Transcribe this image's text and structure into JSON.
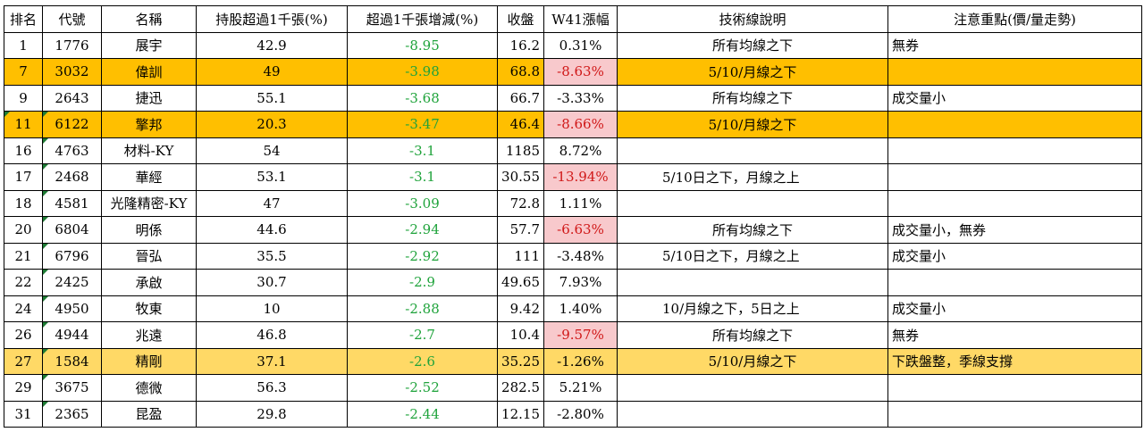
{
  "headers": [
    "排名",
    "代號",
    "名稱",
    "持股超過1千張(%)",
    "超過1千張增減(%)",
    "收盤",
    "W41漲幅",
    "技術線說明",
    "注意重點(價/量走勢)"
  ],
  "rows": [
    {
      "rank": "1",
      "code": "1776",
      "name": "展宇",
      "pct": "42.9",
      "change": "-8.95",
      "close": "16.2",
      "w41": "0.31%",
      "tech": "所有均線之下",
      "note": "無券"
    },
    {
      "rank": "7",
      "code": "3032",
      "name": "偉訓",
      "pct": "49",
      "change": "-3.98",
      "close": "68.8",
      "w41": "-8.63%",
      "tech": "5/10/月線之下",
      "note": ""
    },
    {
      "rank": "9",
      "code": "2643",
      "name": "捷迅",
      "pct": "55.1",
      "change": "-3.68",
      "close": "66.7",
      "w41": "-3.33%",
      "tech": "所有均線之下",
      "note": "成交量小"
    },
    {
      "rank": "11",
      "code": "6122",
      "name": "擎邦",
      "pct": "20.3",
      "change": "-3.47",
      "close": "46.4",
      "w41": "-8.66%",
      "tech": "5/10/月線之下",
      "note": ""
    },
    {
      "rank": "16",
      "code": "4763",
      "name": "材料-KY",
      "pct": "54",
      "change": "-3.1",
      "close": "1185",
      "w41": "8.72%",
      "tech": "",
      "note": ""
    },
    {
      "rank": "17",
      "code": "2468",
      "name": "華經",
      "pct": "53.1",
      "change": "-3.1",
      "close": "30.55",
      "w41": "-13.94%",
      "tech": "5/10日之下，月線之上",
      "note": ""
    },
    {
      "rank": "18",
      "code": "4581",
      "name": "光隆精密-KY",
      "pct": "47",
      "change": "-3.09",
      "close": "72.8",
      "w41": "1.11%",
      "tech": "",
      "note": ""
    },
    {
      "rank": "20",
      "code": "6804",
      "name": "明係",
      "pct": "44.6",
      "change": "-2.94",
      "close": "57.7",
      "w41": "-6.63%",
      "tech": "所有均線之下",
      "note": "成交量小，無券"
    },
    {
      "rank": "21",
      "code": "6796",
      "name": "晉弘",
      "pct": "35.5",
      "change": "-2.92",
      "close": "111",
      "w41": "-3.48%",
      "tech": "5/10日之下，月線之上",
      "note": "成交量小"
    },
    {
      "rank": "22",
      "code": "2425",
      "name": "承啟",
      "pct": "30.7",
      "change": "-2.9",
      "close": "49.65",
      "w41": "7.93%",
      "tech": "",
      "note": ""
    },
    {
      "rank": "24",
      "code": "4950",
      "name": "牧東",
      "pct": "10",
      "change": "-2.88",
      "close": "9.42",
      "w41": "1.40%",
      "tech": "10/月線之下，5日之上",
      "note": "成交量小"
    },
    {
      "rank": "26",
      "code": "4944",
      "name": "兆遠",
      "pct": "46.8",
      "change": "-2.7",
      "close": "10.4",
      "w41": "-9.57%",
      "tech": "所有均線之下",
      "note": "無券"
    },
    {
      "rank": "27",
      "code": "1584",
      "name": "精剛",
      "pct": "37.1",
      "change": "-2.6",
      "close": "35.25",
      "w41": "-1.26%",
      "tech": "5/10/月線之下",
      "note": "下跌盤整，季線支撐"
    },
    {
      "rank": "29",
      "code": "3675",
      "name": "德微",
      "pct": "56.3",
      "change": "-2.52",
      "close": "282.5",
      "w41": "5.21%",
      "tech": "",
      "note": ""
    },
    {
      "rank": "31",
      "code": "2365",
      "name": "昆盈",
      "pct": "29.8",
      "change": "-2.44",
      "close": "12.15",
      "w41": "-2.80%",
      "tech": "",
      "note": ""
    }
  ],
  "colors": {
    "row_highlight": "#ffbf00",
    "row_highlight_light": "#ffd966",
    "negative_cell_bg": "#f8c9cc",
    "negative_text": "#d01818",
    "change_text": "#1fa33b"
  }
}
